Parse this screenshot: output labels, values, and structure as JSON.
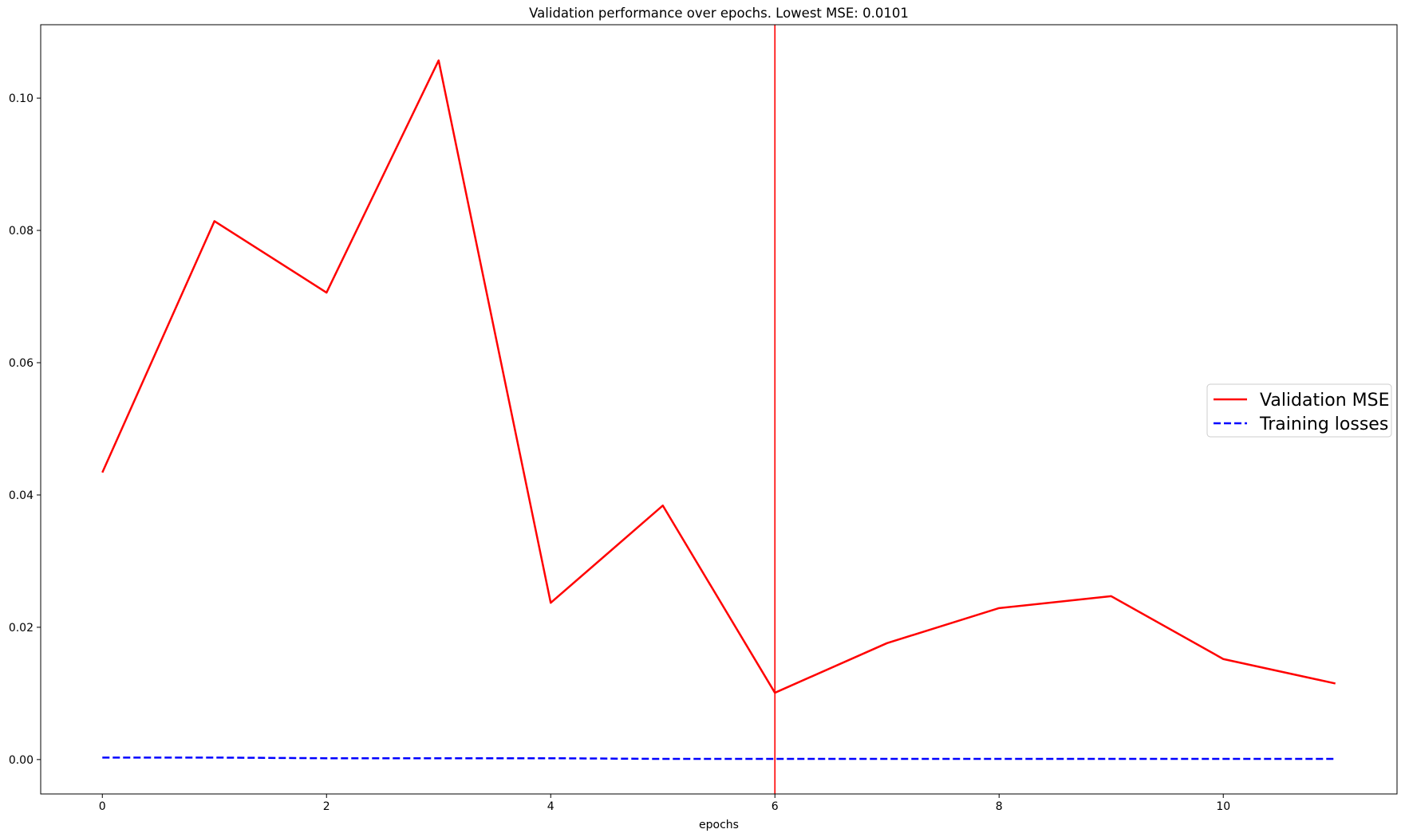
{
  "chart_data": {
    "type": "line",
    "title": "Validation performance over epochs. Lowest MSE: 0.0101",
    "xlabel": "epochs",
    "ylabel": "",
    "xlim": [
      -0.55,
      11.55
    ],
    "ylim": [
      -0.0052,
      0.1111
    ],
    "xticks": [
      0,
      2,
      4,
      6,
      8,
      10
    ],
    "xtick_labels": [
      "0",
      "2",
      "4",
      "6",
      "8",
      "10"
    ],
    "yticks": [
      0.0,
      0.02,
      0.04,
      0.06,
      0.08,
      0.1
    ],
    "ytick_labels": [
      "0.00",
      "0.02",
      "0.04",
      "0.06",
      "0.08",
      "0.10"
    ],
    "x": [
      0,
      1,
      2,
      3,
      4,
      5,
      6,
      7,
      8,
      9,
      10,
      11
    ],
    "series": [
      {
        "name": "Validation MSE",
        "color": "#ff0000",
        "style": "solid",
        "values": [
          0.0434,
          0.0814,
          0.0706,
          0.1057,
          0.0237,
          0.0384,
          0.0101,
          0.0176,
          0.0229,
          0.0247,
          0.0152,
          0.0115
        ]
      },
      {
        "name": "Training losses",
        "color": "#0000ff",
        "style": "dashed",
        "values": [
          0.0003,
          0.0003,
          0.0002,
          0.0002,
          0.0002,
          0.0001,
          0.0001,
          0.0001,
          0.0001,
          0.0001,
          0.0001,
          0.0001
        ]
      }
    ],
    "vline": {
      "x": 6,
      "color": "#ff0000"
    },
    "legend": {
      "location": "center-right"
    },
    "grid": false
  }
}
